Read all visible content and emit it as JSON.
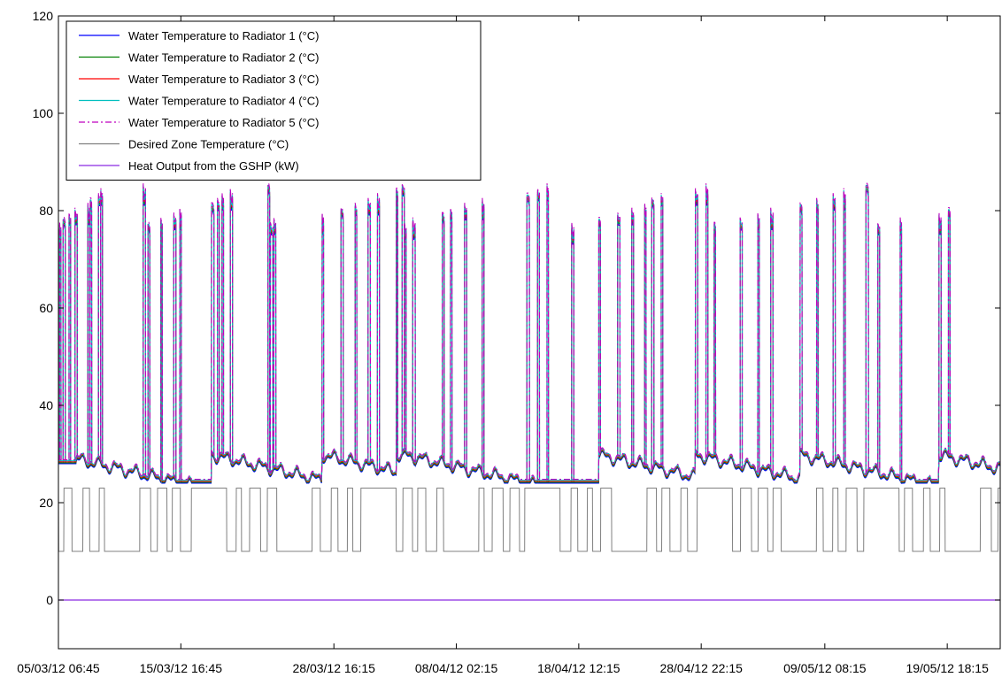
{
  "chart_data": {
    "type": "line",
    "title": "",
    "xlabel": "",
    "ylabel": "",
    "xlim": [
      0,
      80
    ],
    "ylim": [
      -10,
      120
    ],
    "y_ticks": [
      0,
      20,
      40,
      60,
      80,
      100,
      120
    ],
    "x_ticks": [
      {
        "x": 0,
        "label": "05/03/12 06:45"
      },
      {
        "x": 10.4,
        "label": "15/03/12 16:45"
      },
      {
        "x": 23.4,
        "label": "28/03/12 16:15"
      },
      {
        "x": 33.8,
        "label": "08/04/12 02:15"
      },
      {
        "x": 44.2,
        "label": "18/04/12 12:15"
      },
      {
        "x": 54.6,
        "label": "28/04/12 22:15"
      },
      {
        "x": 65.1,
        "label": "09/05/12 08:15"
      },
      {
        "x": 75.5,
        "label": "19/05/12 18:15"
      }
    ],
    "grid": false,
    "legend_position": "top-left",
    "series": [
      {
        "name": "Water Temperature to Radiator 1 (°C)",
        "color": "#0000ff",
        "dash": "solid"
      },
      {
        "name": "Water Temperature to Radiator 2 (°C)",
        "color": "#008000",
        "dash": "solid"
      },
      {
        "name": "Water Temperature to Radiator 3 (°C)",
        "color": "#ff0000",
        "dash": "solid"
      },
      {
        "name": "Water Temperature to Radiator 4 (°C)",
        "color": "#00bfbf",
        "dash": "solid"
      },
      {
        "name": "Water Temperature to Radiator 5 (°C)",
        "color": "#bf00bf",
        "dash": "dashdot"
      },
      {
        "name": "Desired Zone Temperature (°C)",
        "color": "#808080",
        "dash": "solid"
      },
      {
        "name": "Heat Output from the GSHP (kW)",
        "color": "#8a2be2",
        "dash": "solid"
      }
    ],
    "spikes": [
      0.1,
      0.4,
      0.9,
      1.4,
      2.5,
      2.7,
      3.4,
      3.6,
      7.2,
      7.6,
      8.7,
      9.8,
      10.3,
      13.0,
      13.5,
      13.9,
      14.6,
      17.8,
      18.0,
      18.3,
      22.4,
      24.0,
      25.2,
      26.3,
      27.1,
      28.7,
      29.2,
      29.4,
      30.1,
      32.6,
      33.3,
      34.5,
      36.0,
      39.8,
      40.7,
      41.5,
      43.6,
      45.9,
      47.5,
      48.7,
      49.8,
      50.4,
      51.2,
      54.1,
      55.0,
      55.7,
      57.9,
      59.4,
      60.5,
      63.0,
      64.4,
      65.8,
      66.7,
      68.6,
      69.6,
      71.5,
      74.8,
      75.6
    ]
  }
}
